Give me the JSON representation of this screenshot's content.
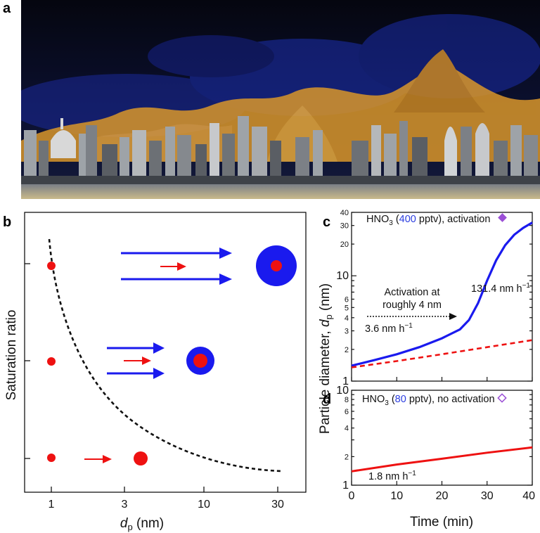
{
  "panel_a": {
    "label": "a"
  },
  "panel_b": {
    "label": "b",
    "ylabel": "Saturation ratio",
    "xlabel_symbol": "d",
    "xlabel_sub": "p",
    "xlabel_unit": " (nm)",
    "xticks": [
      "1",
      "3",
      "10",
      "30"
    ]
  },
  "panel_c": {
    "label": "c",
    "legend_prefix": "HNO",
    "legend_sub": "3",
    "legend_open": " (",
    "legend_value": "400",
    "legend_rest": " pptv), activation",
    "annotation_line1": "Activation at",
    "annotation_line2": "roughly 4 nm",
    "rate_low": "3.6 nm h",
    "rate_high": "131.4 nm h",
    "rate_exp": "−1",
    "yticks": [
      "1",
      "2",
      "3",
      "4",
      "5",
      "6",
      "10",
      "20",
      "30",
      "40"
    ]
  },
  "panel_d": {
    "label": "d",
    "legend_prefix": "HNO",
    "legend_sub": "3",
    "legend_open": " (",
    "legend_value": "80",
    "legend_rest": " pptv), no activation",
    "rate": "1.8 nm h",
    "rate_exp": "−1",
    "yticks": [
      "1",
      "2",
      "4",
      "6",
      "8",
      "10"
    ],
    "xticks": [
      "0",
      "10",
      "20",
      "30",
      "40"
    ],
    "xlabel": "Time (min)"
  },
  "shared_ylabel": {
    "text": "Particle diameter, ",
    "symbol": "d",
    "sub": "p",
    "unit": " (nm)"
  },
  "colors": {
    "blue": "#1a1aee",
    "red": "#ee1111",
    "legend_blue": "#2b3de0",
    "diamond": "#9b4fd6"
  },
  "chart_data": [
    {
      "type": "line",
      "title": "HNO3 (400 pptv), activation",
      "xlabel": "Time (min)",
      "ylabel": "Particle diameter, dp (nm)",
      "yscale": "log",
      "xlim": [
        0,
        40
      ],
      "ylim": [
        1,
        40
      ],
      "series": [
        {
          "name": "activation (solid blue)",
          "x": [
            0,
            5,
            10,
            15,
            20,
            24,
            26,
            28,
            30,
            32,
            34,
            36,
            38,
            40
          ],
          "y": [
            1.4,
            1.58,
            1.8,
            2.1,
            2.55,
            3.1,
            3.8,
            5.5,
            9.0,
            14.0,
            19.5,
            24.5,
            28.5,
            32.0
          ]
        },
        {
          "name": "no activation (dashed red)",
          "x": [
            0,
            10,
            20,
            30,
            40
          ],
          "y": [
            1.35,
            1.55,
            1.8,
            2.1,
            2.45
          ]
        }
      ]
    },
    {
      "type": "line",
      "title": "HNO3 (80 pptv), no activation",
      "xlabel": "Time (min)",
      "ylabel": "Particle diameter, dp (nm)",
      "yscale": "log",
      "xlim": [
        0,
        40
      ],
      "ylim": [
        1,
        10
      ],
      "series": [
        {
          "name": "growth (solid red)",
          "x": [
            0,
            10,
            20,
            30,
            40
          ],
          "y": [
            1.4,
            1.65,
            1.9,
            2.2,
            2.5
          ]
        }
      ]
    }
  ]
}
